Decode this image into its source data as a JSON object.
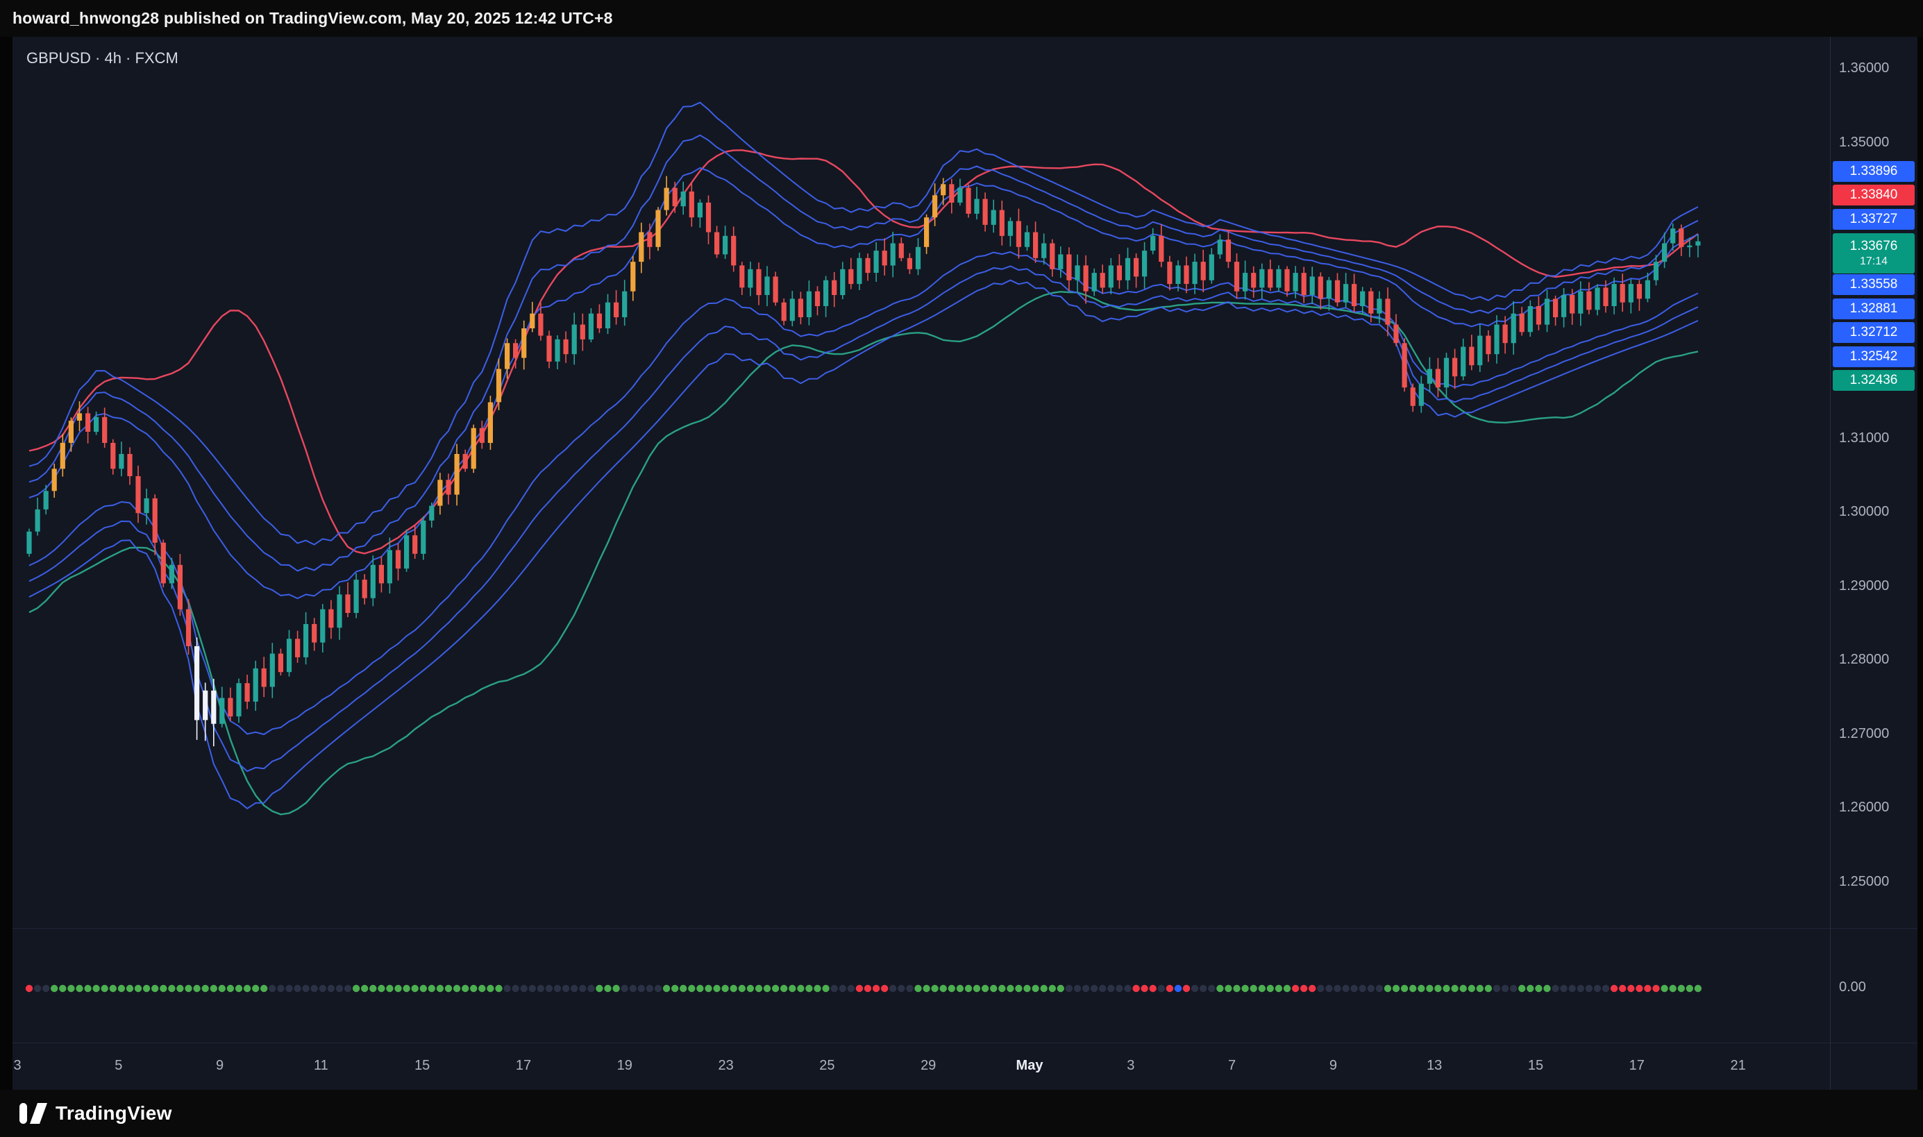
{
  "topbar": {
    "text": "howard_hnwong28 published on TradingView.com, May 20, 2025 12:42 UTC+8"
  },
  "legend": {
    "symbol": "GBPUSD",
    "interval": "4h",
    "exchange": "FXCM",
    "text": "GBPUSD · 4h · FXCM"
  },
  "brand": {
    "name": "TradingView"
  },
  "sub_pane": {
    "value_label": "0.00"
  },
  "time_axis": {
    "labels": [
      "3",
      "5",
      "9",
      "11",
      "15",
      "17",
      "19",
      "23",
      "25",
      "29",
      "May",
      "3",
      "7",
      "9",
      "13",
      "15",
      "17",
      "21"
    ],
    "major": "May"
  },
  "price_axis": {
    "ticks": [
      {
        "text": "1.36000",
        "value": 1.36
      },
      {
        "text": "1.35000",
        "value": 1.35
      },
      {
        "text": "1.31000",
        "value": 1.31
      },
      {
        "text": "1.30000",
        "value": 1.3
      },
      {
        "text": "1.29000",
        "value": 1.29
      },
      {
        "text": "1.28000",
        "value": 1.28
      },
      {
        "text": "1.27000",
        "value": 1.27
      },
      {
        "text": "1.26000",
        "value": 1.26
      },
      {
        "text": "1.25000",
        "value": 1.25
      }
    ],
    "colors": {
      "blue": "#2962ff",
      "red": "#f23645",
      "green": "#089981"
    },
    "labels": [
      {
        "text": "1.33896",
        "type": "blue"
      },
      {
        "text": "1.33840",
        "type": "red"
      },
      {
        "text": "1.33727",
        "type": "blue"
      },
      {
        "text": "1.33676",
        "type": "green",
        "countdown": "17:14",
        "is_last_price": true
      },
      {
        "text": "1.33558",
        "type": "blue"
      },
      {
        "text": "1.32881",
        "type": "blue"
      },
      {
        "text": "1.32712",
        "type": "blue"
      },
      {
        "text": "1.32542",
        "type": "blue"
      },
      {
        "text": "1.32436",
        "type": "green"
      }
    ]
  },
  "chart_data": {
    "type": "candlestick",
    "symbol": "GBPUSD",
    "interval": "4h",
    "exchange": "FXCM",
    "title": "GBPUSD · 4h · FXCM",
    "y_range_visible": [
      1.244,
      1.364
    ],
    "last_price": 1.33676,
    "countdown": "17:14",
    "candles": {
      "first_open": 1.2945,
      "closes": [
        1.2975,
        1.3005,
        1.303,
        1.306,
        1.3095,
        1.3125,
        1.3135,
        1.311,
        1.313,
        1.3095,
        1.306,
        1.308,
        1.305,
        1.3,
        1.302,
        1.296,
        1.2905,
        1.293,
        1.287,
        1.282,
        1.272,
        1.276,
        1.2715,
        1.275,
        1.2725,
        1.277,
        1.2745,
        1.279,
        1.2765,
        1.281,
        1.2785,
        1.283,
        1.2805,
        1.285,
        1.2825,
        1.287,
        1.2845,
        1.289,
        1.2865,
        1.291,
        1.2885,
        1.293,
        1.2905,
        1.295,
        1.2925,
        1.297,
        1.2945,
        1.299,
        1.301,
        1.3045,
        1.3025,
        1.308,
        1.306,
        1.3115,
        1.3095,
        1.315,
        1.3195,
        1.323,
        1.321,
        1.325,
        1.327,
        1.324,
        1.3205,
        1.3235,
        1.3215,
        1.3255,
        1.3235,
        1.327,
        1.325,
        1.3285,
        1.3265,
        1.33,
        1.334,
        1.338,
        1.336,
        1.341,
        1.344,
        1.3415,
        1.3435,
        1.34,
        1.342,
        1.338,
        1.335,
        1.3375,
        1.3335,
        1.3305,
        1.333,
        1.3295,
        1.332,
        1.3285,
        1.326,
        1.329,
        1.3265,
        1.33,
        1.328,
        1.3315,
        1.3295,
        1.333,
        1.331,
        1.3345,
        1.3325,
        1.3355,
        1.3335,
        1.3365,
        1.3345,
        1.333,
        1.336,
        1.34,
        1.343,
        1.3445,
        1.342,
        1.344,
        1.3405,
        1.3425,
        1.339,
        1.341,
        1.3375,
        1.3395,
        1.336,
        1.338,
        1.3345,
        1.3365,
        1.333,
        1.335,
        1.3315,
        1.3335,
        1.33,
        1.3325,
        1.3305,
        1.3335,
        1.3315,
        1.3345,
        1.332,
        1.3355,
        1.3375,
        1.334,
        1.331,
        1.3335,
        1.331,
        1.334,
        1.3315,
        1.335,
        1.337,
        1.334,
        1.33,
        1.3325,
        1.3305,
        1.333,
        1.3305,
        1.333,
        1.33,
        1.3325,
        1.3295,
        1.332,
        1.329,
        1.3315,
        1.3285,
        1.331,
        1.328,
        1.33,
        1.327,
        1.329,
        1.3255,
        1.323,
        1.317,
        1.3145,
        1.3175,
        1.3195,
        1.317,
        1.321,
        1.3185,
        1.3225,
        1.32,
        1.324,
        1.3215,
        1.3255,
        1.323,
        1.327,
        1.3245,
        1.328,
        1.3255,
        1.329,
        1.3265,
        1.3295,
        1.327,
        1.33,
        1.3275,
        1.3305,
        1.328,
        1.331,
        1.3285,
        1.331,
        1.329,
        1.3315,
        1.334,
        1.3365,
        1.3385,
        1.336,
        1.3362,
        1.33676
      ],
      "color_segments": [
        "gggoooo",
        "rgrrgrrgrrgrr",
        "www",
        "grgrgrgrgrgrgrgrgrgrgrgrg",
        "gorororoooroorr",
        "grgrgrgrg",
        "ooroor",
        "grgrrgrrgrgrrgr",
        "grgrgrgrgrgrrg",
        "ooo",
        "rgrgrgrgrgrgrgrgrgrgrgrgg",
        "rrgrgrggrrgrgrgrgrgrgrgrgrgr",
        "rrrgg",
        "rgrgrgrgrgrgrgrgrgrgrgrgrg",
        "gggrgg"
      ],
      "palette": {
        "g": "#26a69a",
        "r": "#ef5350",
        "o": "#f0a43c",
        "w": "#f0f3fa"
      }
    },
    "bands": {
      "blue_multipliers": [
        1.4,
        2.05,
        2.7
      ],
      "outer_multiplier": 2.3,
      "blue_color": "#3e63f2",
      "upper_outer_color": "#e8485f",
      "lower_outer_color": "#2aa184",
      "end_values": {
        "upper_blues": [
          1.33896,
          1.33727,
          1.33558
        ],
        "upper_outer": 1.3384,
        "lower_blues": [
          1.32881,
          1.32712,
          1.32542
        ],
        "lower_outer": 1.32436
      }
    },
    "dots": {
      "runs": [
        [
          "r",
          1
        ],
        [
          "d",
          2
        ],
        [
          "g",
          26
        ],
        [
          "d",
          10
        ],
        [
          "g",
          18
        ],
        [
          "d",
          11
        ],
        [
          "g",
          3
        ],
        [
          "d",
          5
        ],
        [
          "g",
          20
        ],
        [
          "d",
          3
        ],
        [
          "r",
          4
        ],
        [
          "d",
          3
        ],
        [
          "g",
          18
        ],
        [
          "d",
          8
        ],
        [
          "r",
          3
        ],
        [
          "d",
          1
        ],
        [
          "r",
          1
        ],
        [
          "b",
          1
        ],
        [
          "r",
          1
        ],
        [
          "d",
          3
        ],
        [
          "g",
          9
        ],
        [
          "r",
          3
        ],
        [
          "d",
          8
        ],
        [
          "g",
          13
        ],
        [
          "d",
          3
        ],
        [
          "g",
          4
        ],
        [
          "d",
          7
        ],
        [
          "r",
          6
        ],
        [
          "g",
          5
        ]
      ],
      "palette": {
        "g": "#4caf50",
        "d": "#2c3246",
        "r": "#f23645",
        "b": "#2962ff"
      },
      "value_label": "0.00"
    }
  }
}
